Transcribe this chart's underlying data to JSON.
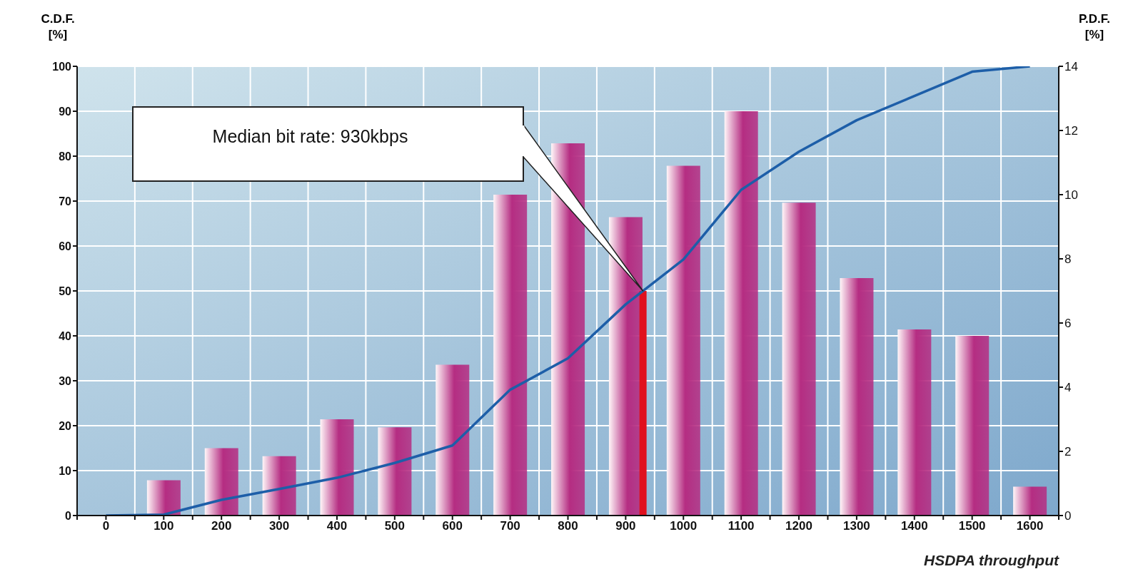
{
  "chart_data": {
    "xlabel": "HSDPA throughput",
    "ylabel": "C.D.F.\n[%]",
    "y2label": "P.D.F.\n[%]",
    "type": "bar",
    "x": [
      0,
      100,
      200,
      300,
      400,
      500,
      600,
      700,
      800,
      900,
      1000,
      1100,
      1200,
      1300,
      1400,
      1500,
      1600
    ],
    "series": [
      {
        "axis": "y2",
        "color": "#b52d82",
        "values": [
          0,
          1.1,
          2.1,
          1.85,
          3.0,
          2.75,
          4.7,
          10.0,
          11.6,
          9.3,
          10.9,
          12.6,
          9.75,
          7.4,
          5.8,
          5.6,
          0.9
        ]
      },
      {
        "type": "line",
        "axis": "y",
        "color": "#1d5ea8",
        "values": [
          0,
          0.2,
          3.5,
          5.9,
          8.4,
          11.7,
          15.6,
          28,
          35,
          47,
          57,
          72.5,
          81,
          88,
          93.4,
          98.8,
          100
        ]
      }
    ],
    "xlim": [
      -50,
      1650
    ],
    "xticks": [
      {
        "value": -50,
        "label": null
      },
      0,
      {
        "value": 50,
        "label": null
      },
      100,
      {
        "value": 150,
        "label": null
      },
      200,
      {
        "value": 250,
        "label": null
      },
      300,
      {
        "value": 350,
        "label": null
      },
      400,
      {
        "value": 450,
        "label": null
      },
      500,
      {
        "value": 550,
        "label": null
      },
      600,
      {
        "value": 650,
        "label": null
      },
      700,
      {
        "value": 750,
        "label": null
      },
      800,
      {
        "value": 850,
        "label": null
      },
      900,
      {
        "value": 950,
        "label": null
      },
      1000,
      {
        "value": 1050,
        "label": null
      },
      1100,
      {
        "value": 1150,
        "label": null
      },
      1200,
      {
        "value": 1250,
        "label": null
      },
      1300,
      {
        "value": 1350,
        "label": null
      },
      1400,
      {
        "value": 1450,
        "label": null
      },
      1500,
      {
        "value": 1550,
        "label": null
      },
      1600,
      {
        "value": 1650,
        "label": null
      }
    ],
    "ylim": [
      0,
      100
    ],
    "yticks": [
      0,
      10,
      20,
      30,
      40,
      50,
      60,
      70,
      80,
      90,
      100
    ],
    "y2lim": [
      0,
      14
    ],
    "y2ticks": [
      0,
      2,
      4,
      6,
      8,
      10,
      12,
      14
    ],
    "ref_lines": [
      {
        "axis": "x",
        "value": 930,
        "color": "#e0101e"
      }
    ],
    "annotations": [
      "Median bit rate: 930kbps"
    ],
    "grid": true,
    "legend": false,
    "marker": "none",
    "line_style": "solid"
  }
}
